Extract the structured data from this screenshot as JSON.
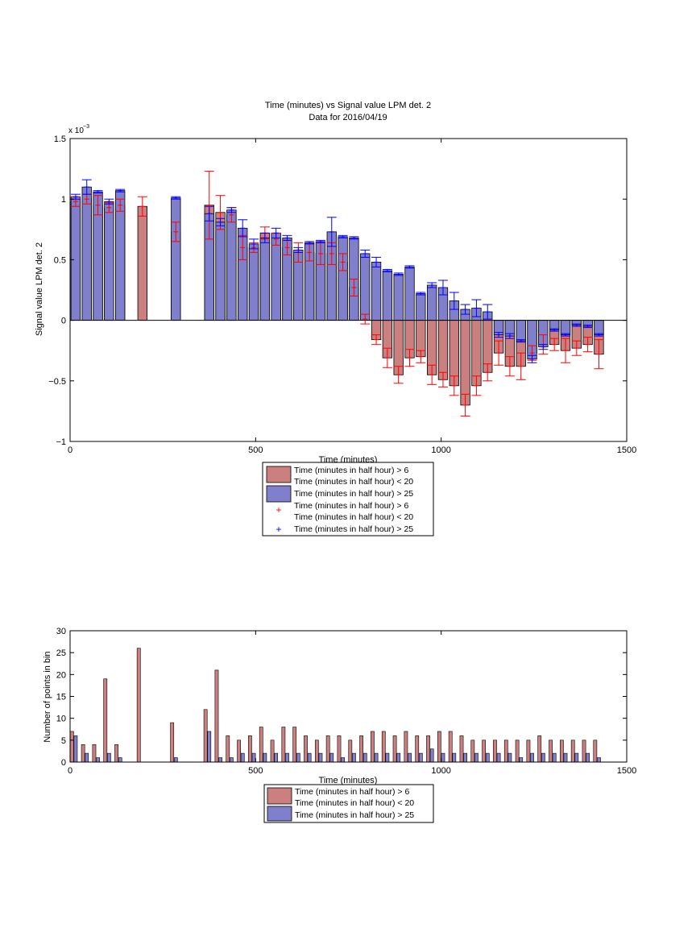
{
  "figure": {
    "title": "Time (minutes) vs Signal value LPM det. 2",
    "subtitle": "Data for 2016/04/19"
  },
  "colors": {
    "red_bar": "#cc7f7f",
    "blue_bar": "#7f7fcc",
    "red_err": "#ff0000",
    "blue_err": "#0000ff"
  },
  "legend_top": {
    "entries": [
      {
        "line1": "Time (minutes in half hour) > 6",
        "line2": "Time (minutes in half hour) < 20"
      },
      {
        "line1": "Time (minutes in half hour) > 25",
        "line2": ""
      },
      {
        "line1": "Time (minutes in half hour) > 6",
        "line2": "Time (minutes in half hour) < 20"
      },
      {
        "line1": "Time (minutes in half hour) > 25",
        "line2": ""
      }
    ]
  },
  "legend_bottom": {
    "entries": [
      {
        "line1": "Time (minutes in half hour) > 6",
        "line2": "Time (minutes in half hour) < 20"
      },
      {
        "line1": "Time (minutes in half hour) > 25",
        "line2": ""
      }
    ]
  },
  "chart_data": [
    {
      "type": "bar",
      "title": "Time (minutes) vs Signal value LPM det. 2",
      "subtitle": "Data for 2016/04/19",
      "xlabel": "Time (minutes)",
      "ylabel": "Signal value LPM det. 2",
      "xlim": [
        0,
        1500
      ],
      "ylim": [
        -1,
        1.5
      ],
      "y_scale_label": "x 10",
      "y_scale_exponent": "−3",
      "xticks": [
        "0",
        "500",
        "1000",
        "1500"
      ],
      "yticks": [
        "−1",
        "−0.5",
        "0",
        "0.5",
        "1",
        "1.5"
      ],
      "bar_width": 25,
      "grid": false,
      "legend_position": "below",
      "series": [
        {
          "name": "Time (minutes in half hour) > 6 Time (minutes in half hour) < 20",
          "x": [
            15,
            45,
            75,
            105,
            135,
            195,
            285,
            375,
            405,
            435,
            465,
            495,
            525,
            555,
            585,
            615,
            645,
            675,
            705,
            735,
            765,
            795,
            825,
            855,
            885,
            915,
            945,
            975,
            1005,
            1035,
            1065,
            1095,
            1125,
            1155,
            1185,
            1215,
            1245,
            1275,
            1305,
            1335,
            1365,
            1395,
            1425
          ],
          "values": [
            0.98,
            1.0,
            0.95,
            0.93,
            0.95,
            0.94,
            0.73,
            0.95,
            0.89,
            0.87,
            0.6,
            0.6,
            0.72,
            0.67,
            0.6,
            0.56,
            0.56,
            0.55,
            0.55,
            0.48,
            0.27,
            0.01,
            -0.16,
            -0.31,
            -0.45,
            -0.31,
            -0.3,
            -0.45,
            -0.49,
            -0.54,
            -0.7,
            -0.54,
            -0.43,
            -0.27,
            -0.38,
            -0.38,
            -0.27,
            -0.2,
            -0.2,
            -0.25,
            -0.23,
            -0.2,
            -0.28
          ],
          "errors": [
            0.04,
            0.04,
            0.08,
            0.04,
            0.05,
            0.08,
            0.08,
            0.28,
            0.14,
            0.06,
            0.1,
            0.04,
            0.05,
            0.05,
            0.06,
            0.08,
            0.07,
            0.09,
            0.09,
            0.07,
            0.07,
            0.04,
            0.04,
            0.08,
            0.07,
            0.07,
            0.05,
            0.08,
            0.06,
            0.08,
            0.09,
            0.08,
            0.07,
            0.1,
            0.08,
            0.11,
            0.06,
            0.08,
            0.05,
            0.1,
            0.06,
            0.06,
            0.12
          ]
        },
        {
          "name": "Time (minutes in half hour) > 25",
          "x": [
            15,
            45,
            75,
            105,
            135,
            285,
            375,
            405,
            435,
            465,
            495,
            525,
            555,
            585,
            615,
            645,
            675,
            705,
            735,
            765,
            795,
            825,
            855,
            885,
            915,
            945,
            975,
            1005,
            1035,
            1065,
            1095,
            1125,
            1155,
            1185,
            1215,
            1245,
            1275,
            1305,
            1335,
            1365,
            1395,
            1425
          ],
          "values": [
            1.02,
            1.1,
            1.06,
            0.98,
            1.07,
            1.01,
            0.88,
            0.81,
            0.91,
            0.76,
            0.63,
            0.68,
            0.72,
            0.68,
            0.58,
            0.64,
            0.65,
            0.73,
            0.69,
            0.68,
            0.55,
            0.48,
            0.41,
            0.38,
            0.44,
            0.22,
            0.29,
            0.27,
            0.16,
            0.09,
            0.1,
            0.07,
            -0.12,
            -0.13,
            -0.17,
            -0.32,
            -0.22,
            -0.08,
            -0.12,
            -0.04,
            -0.05,
            -0.12
          ],
          "errors": [
            0.02,
            0.06,
            0.01,
            0.02,
            0.01,
            0.01,
            0.06,
            0.03,
            0.02,
            0.07,
            0.04,
            0.04,
            0.04,
            0.02,
            0.02,
            0.01,
            0.01,
            0.12,
            0.01,
            0.01,
            0.03,
            0.04,
            0.01,
            0.01,
            0.01,
            0.01,
            0.02,
            0.06,
            0.07,
            0.04,
            0.07,
            0.06,
            0.02,
            0.02,
            0.01,
            0.03,
            0.02,
            0.01,
            0.01,
            0.01,
            0.01,
            0.01
          ]
        }
      ]
    },
    {
      "type": "bar",
      "xlabel": "Time (minutes)",
      "ylabel": "Number of points in bin",
      "xlim": [
        0,
        1500
      ],
      "ylim": [
        0,
        30
      ],
      "xticks": [
        "0",
        "500",
        "1000",
        "1500"
      ],
      "yticks": [
        "0",
        "5",
        "10",
        "15",
        "20",
        "25",
        "30"
      ],
      "bar_width": 9,
      "grid": false,
      "legend_position": "below",
      "series": [
        {
          "name": "Time (minutes in half hour) > 6 Time (minutes in half hour) < 20",
          "x": [
            5,
            35,
            65,
            95,
            125,
            185,
            275,
            365,
            395,
            425,
            455,
            485,
            515,
            545,
            575,
            605,
            635,
            665,
            695,
            725,
            755,
            785,
            815,
            845,
            875,
            905,
            935,
            965,
            995,
            1025,
            1055,
            1085,
            1115,
            1145,
            1175,
            1205,
            1235,
            1265,
            1295,
            1325,
            1355,
            1385,
            1415
          ],
          "values": [
            7,
            4,
            4,
            19,
            4,
            26,
            9,
            12,
            21,
            6,
            5,
            6,
            8,
            5,
            8,
            8,
            6,
            5,
            6,
            6,
            5,
            6,
            7,
            7,
            6,
            7,
            6,
            6,
            7,
            7,
            6,
            5,
            5,
            5,
            5,
            5,
            5,
            6,
            5,
            5,
            5,
            5,
            5
          ]
        },
        {
          "name": "Time (minutes in half hour) > 25",
          "x": [
            15,
            45,
            75,
            105,
            135,
            285,
            375,
            405,
            435,
            465,
            495,
            525,
            555,
            585,
            615,
            645,
            675,
            705,
            735,
            765,
            795,
            825,
            855,
            885,
            915,
            945,
            975,
            1005,
            1035,
            1065,
            1095,
            1125,
            1155,
            1185,
            1215,
            1245,
            1275,
            1305,
            1335,
            1365,
            1395,
            1425
          ],
          "values": [
            6,
            2,
            1,
            2,
            1,
            1,
            7,
            1,
            1,
            2,
            2,
            2,
            2,
            2,
            2,
            2,
            2,
            2,
            1,
            2,
            2,
            2,
            2,
            2,
            2,
            2,
            3,
            2,
            2,
            2,
            2,
            2,
            2,
            2,
            1,
            2,
            2,
            2,
            2,
            2,
            2,
            1
          ]
        }
      ]
    }
  ]
}
